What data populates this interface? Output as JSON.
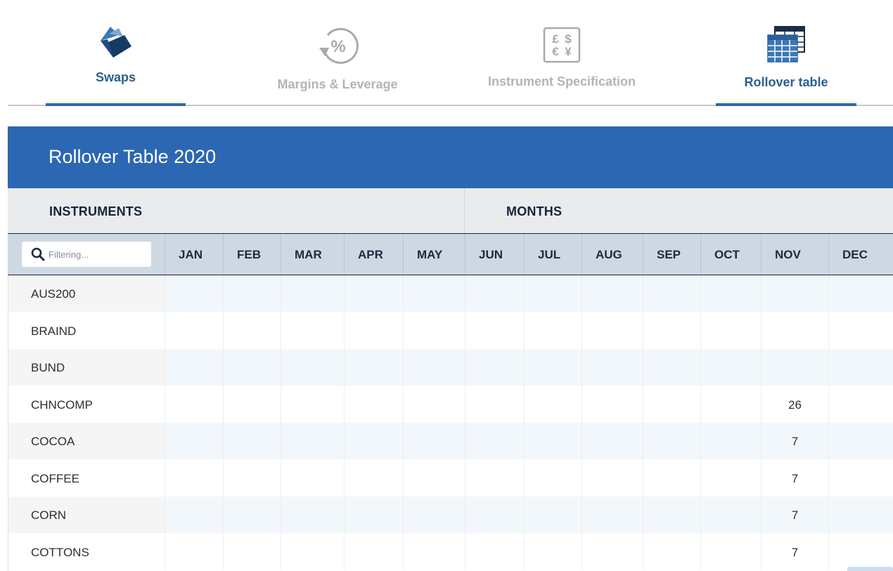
{
  "tabs": [
    {
      "label": "Swaps",
      "icon": "swaps-arrows-icon",
      "active": true
    },
    {
      "label": "Margins & Leverage",
      "icon": "percent-cycle-icon",
      "active": false
    },
    {
      "label": "Instrument Specification",
      "icon": "currency-symbols-icon",
      "active": false
    },
    {
      "label": "Rollover table",
      "icon": "calendar-table-icon",
      "active": true
    }
  ],
  "panel": {
    "title": "Rollover Table 2020",
    "instruments_label": "INSTRUMENTS",
    "months_label": "MONTHS"
  },
  "filter": {
    "placeholder": "Filtering...",
    "value": ""
  },
  "months": [
    "JAN",
    "FEB",
    "MAR",
    "APR",
    "MAY",
    "JUN",
    "JUL",
    "AUG",
    "SEP",
    "OCT",
    "NOV",
    "DEC"
  ],
  "rows": [
    {
      "instrument": "AUS200",
      "values": [
        "",
        "",
        "",
        "",
        "",
        "",
        "",
        "",
        "",
        "",
        "",
        ""
      ]
    },
    {
      "instrument": "BRAIND",
      "values": [
        "",
        "",
        "",
        "",
        "",
        "",
        "",
        "",
        "",
        "",
        "",
        ""
      ]
    },
    {
      "instrument": "BUND",
      "values": [
        "",
        "",
        "",
        "",
        "",
        "",
        "",
        "",
        "",
        "",
        "",
        ""
      ]
    },
    {
      "instrument": "CHNCOMP",
      "values": [
        "",
        "",
        "",
        "",
        "",
        "",
        "",
        "",
        "",
        "",
        "26",
        ""
      ]
    },
    {
      "instrument": "COCOA",
      "values": [
        "",
        "",
        "",
        "",
        "",
        "",
        "",
        "",
        "",
        "",
        "7",
        ""
      ]
    },
    {
      "instrument": "COFFEE",
      "values": [
        "",
        "",
        "",
        "",
        "",
        "",
        "",
        "",
        "",
        "",
        "7",
        ""
      ]
    },
    {
      "instrument": "CORN",
      "values": [
        "",
        "",
        "",
        "",
        "",
        "",
        "",
        "",
        "",
        "",
        "7",
        ""
      ]
    },
    {
      "instrument": "COTTONS",
      "values": [
        "",
        "",
        "",
        "",
        "",
        "",
        "",
        "",
        "",
        "",
        "7",
        ""
      ]
    }
  ],
  "colors": {
    "accent": "#2c67b3",
    "tab_active_text": "#2b5f8f",
    "tab_inactive_text": "#b4b4b4"
  }
}
